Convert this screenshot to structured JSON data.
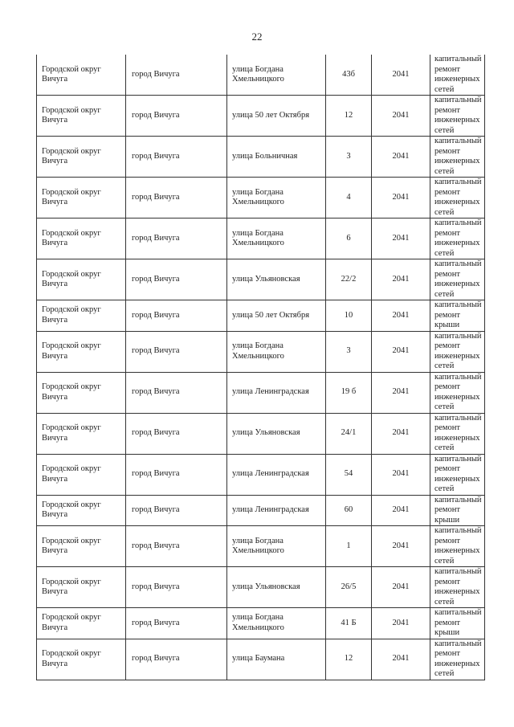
{
  "page_number": "22",
  "rows": [
    {
      "district": "Городской округ Вичуга",
      "city": "город Вичуга",
      "street": "улица Богдана Хмельницкого",
      "house": "43б",
      "year": "2041",
      "work": "капитальный ремонт инженерных сетей"
    },
    {
      "district": "Городской округ Вичуга",
      "city": "город Вичуга",
      "street": "улица 50 лет Октября",
      "house": "12",
      "year": "2041",
      "work": "капитальный ремонт инженерных сетей"
    },
    {
      "district": "Городской округ Вичуга",
      "city": "город Вичуга",
      "street": "улица Больничная",
      "house": "3",
      "year": "2041",
      "work": "капитальный ремонт инженерных сетей"
    },
    {
      "district": "Городской округ Вичуга",
      "city": "город Вичуга",
      "street": "улица Богдана Хмельницкого",
      "house": "4",
      "year": "2041",
      "work": "капитальный ремонт инженерных сетей"
    },
    {
      "district": "Городской округ Вичуга",
      "city": "город Вичуга",
      "street": "улица Богдана Хмельницкого",
      "house": "6",
      "year": "2041",
      "work": "капитальный ремонт инженерных сетей"
    },
    {
      "district": "Городской округ Вичуга",
      "city": "город Вичуга",
      "street": "улица Ульяновская",
      "house": "22/2",
      "year": "2041",
      "work": "капитальный ремонт инженерных сетей"
    },
    {
      "district": "Городской округ Вичуга",
      "city": "город Вичуга",
      "street": "улица 50 лет Октября",
      "house": "10",
      "year": "2041",
      "work": "капитальный ремонт крыши"
    },
    {
      "district": "Городской округ Вичуга",
      "city": "город Вичуга",
      "street": "улица Богдана Хмельницкого",
      "house": "3",
      "year": "2041",
      "work": "капитальный ремонт инженерных сетей"
    },
    {
      "district": "Городской округ Вичуга",
      "city": "город Вичуга",
      "street": "улица Ленинградская",
      "house": "19 б",
      "year": "2041",
      "work": "капитальный ремонт инженерных сетей"
    },
    {
      "district": "Городской округ Вичуга",
      "city": "город Вичуга",
      "street": "улица Ульяновская",
      "house": "24/1",
      "year": "2041",
      "work": "капитальный ремонт инженерных сетей"
    },
    {
      "district": "Городской округ Вичуга",
      "city": "город Вичуга",
      "street": "улица Ленинградская",
      "house": "54",
      "year": "2041",
      "work": "капитальный ремонт инженерных сетей"
    },
    {
      "district": "Городской округ Вичуга",
      "city": "город Вичуга",
      "street": "улица Ленинградская",
      "house": "60",
      "year": "2041",
      "work": "капитальный ремонт крыши"
    },
    {
      "district": "Городской округ Вичуга",
      "city": "город Вичуга",
      "street": "улица Богдана Хмельницкого",
      "house": "1",
      "year": "2041",
      "work": "капитальный ремонт инженерных сетей"
    },
    {
      "district": "Городской округ Вичуга",
      "city": "город Вичуга",
      "street": "улица Ульяновская",
      "house": "26/5",
      "year": "2041",
      "work": "капитальный ремонт инженерных сетей"
    },
    {
      "district": "Городской округ Вичуга",
      "city": "город Вичуга",
      "street": "улица Богдана Хмельницкого",
      "house": "41 Б",
      "year": "2041",
      "work": "капитальный ремонт крыши"
    },
    {
      "district": "Городской округ Вичуга",
      "city": "город Вичуга",
      "street": "улица Баумана",
      "house": "12",
      "year": "2041",
      "work": "капитальный ремонт инженерных сетей"
    }
  ]
}
